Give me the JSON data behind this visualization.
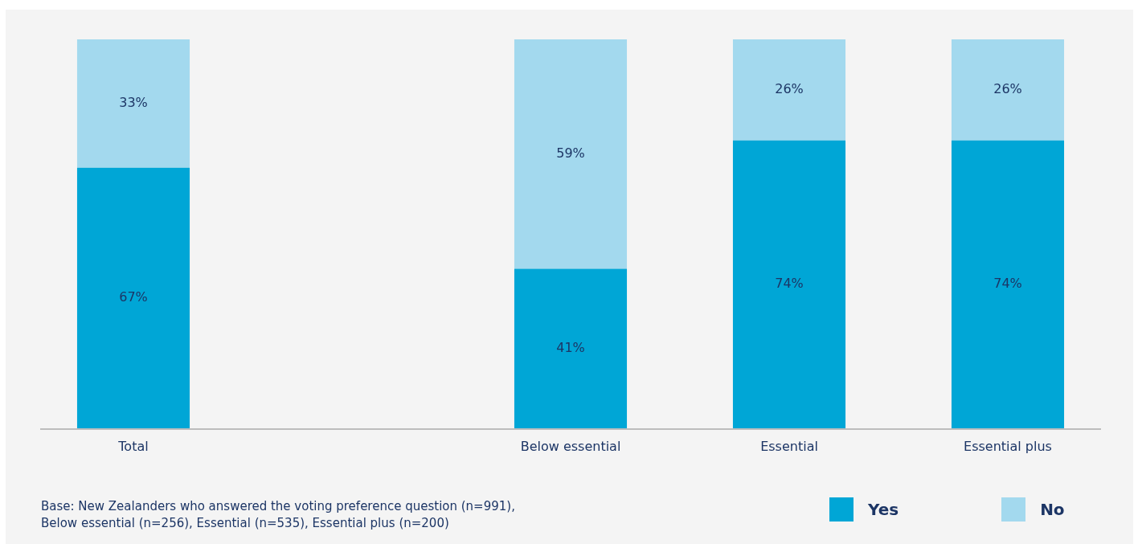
{
  "chart_data": {
    "type": "bar",
    "stacked": true,
    "categories": [
      "Total",
      null,
      "Below essential",
      "Essential",
      "Essential plus"
    ],
    "series": [
      {
        "name": "Yes",
        "color": "#00a6d6",
        "values": [
          67,
          null,
          41,
          74,
          74
        ],
        "value_labels": [
          "67%",
          null,
          "41%",
          "74%",
          "74%"
        ]
      },
      {
        "name": "No",
        "color": "#a3d9ee",
        "values": [
          33,
          null,
          59,
          26,
          26
        ],
        "value_labels": [
          "33%",
          null,
          "59%",
          "26%",
          "26%"
        ]
      }
    ],
    "ylim": [
      0,
      100
    ],
    "tick_labels": "x",
    "legend": "bottom right",
    "annotations": [
      "Base: New Zealanders who answered the voting preference question (n=991),\nBelow essential (n=256), Essential (n=535), Essential plus (n=200)"
    ]
  }
}
